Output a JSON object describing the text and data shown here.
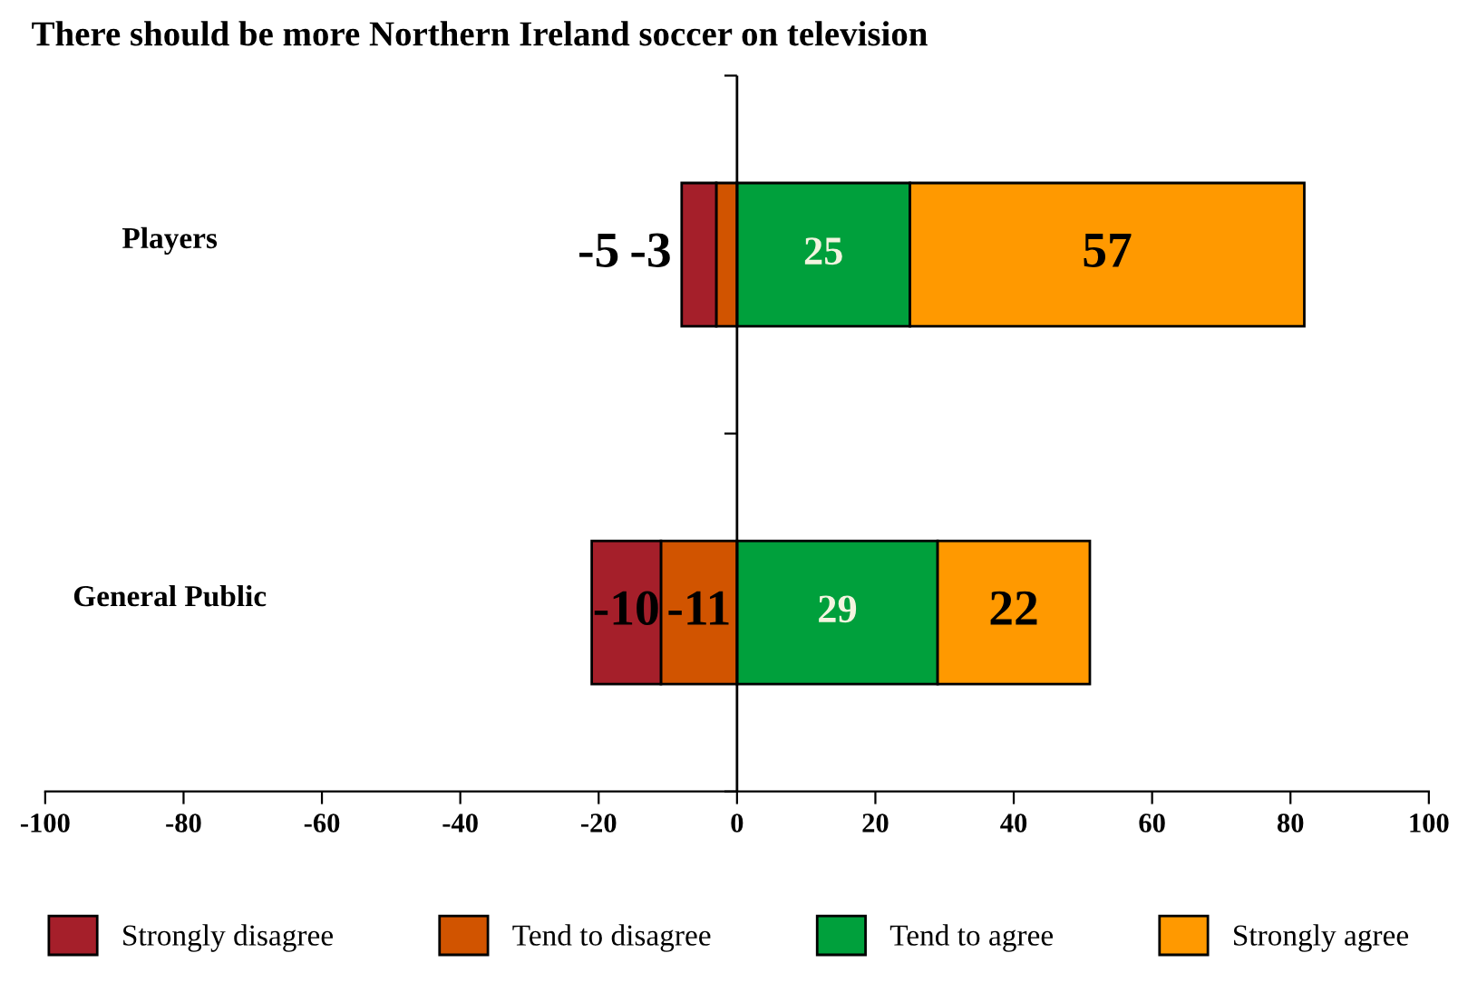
{
  "chart_data": {
    "type": "bar",
    "orientation": "horizontal",
    "stacked": true,
    "title": "There should be more Northern Ireland soccer on television",
    "categories": [
      "Players",
      "General Public"
    ],
    "series": [
      {
        "name": "Strongly disagree",
        "color": "#a51f2a",
        "values": [
          -5,
          -10
        ]
      },
      {
        "name": "Tend to disagree",
        "color": "#d15400",
        "values": [
          -3,
          -11
        ]
      },
      {
        "name": "Tend to agree",
        "color": "#00a03c",
        "values": [
          25,
          29
        ]
      },
      {
        "name": "Strongly agree",
        "color": "#ff9900",
        "values": [
          57,
          22
        ]
      }
    ],
    "xlim": [
      -100,
      100
    ],
    "xticks": [
      -100,
      -80,
      -60,
      -40,
      -20,
      0,
      20,
      40,
      60,
      80,
      100
    ],
    "ref_lines": [
      {
        "axis": "x",
        "value": 0,
        "color": "#000000"
      }
    ],
    "grid": false,
    "legend": "bottom",
    "data_labels": true
  }
}
